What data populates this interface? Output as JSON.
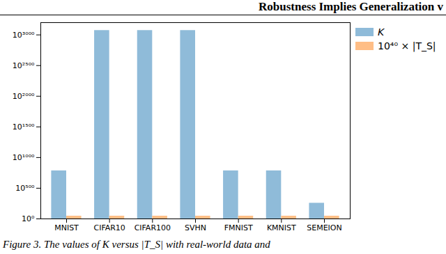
{
  "chart_data": {
    "type": "bar",
    "title": "Robustness Implies Generalization v",
    "caption": "Figure 3. The values of K versus |T_S| with real-world data and",
    "categories": [
      "MNIST",
      "CIFAR10",
      "CIFAR100",
      "SVHN",
      "FMNIST",
      "KMNIST",
      "SEMEION"
    ],
    "series": [
      {
        "name": "K",
        "color": "#8fbbd9",
        "values": [
          784,
          3072,
          3072,
          3072,
          784,
          784,
          256
        ]
      },
      {
        "name": "10⁴⁰ × |T_S|",
        "color": "#ffbe86",
        "values": [
          45,
          45,
          45,
          45,
          45,
          45,
          45
        ]
      }
    ],
    "ylim": [
      0,
      3200
    ],
    "yticks": [
      {
        "value": 0,
        "label": "10⁰"
      },
      {
        "value": 500,
        "label": "10⁵⁰⁰"
      },
      {
        "value": 1000,
        "label": "10¹⁰⁰⁰"
      },
      {
        "value": 1500,
        "label": "10¹⁵⁰⁰"
      },
      {
        "value": 2000,
        "label": "10²⁰⁰⁰"
      },
      {
        "value": 2500,
        "label": "10²⁵⁰⁰"
      },
      {
        "value": 3000,
        "label": "10³⁰⁰⁰"
      }
    ],
    "grid": false,
    "legend": "right"
  }
}
